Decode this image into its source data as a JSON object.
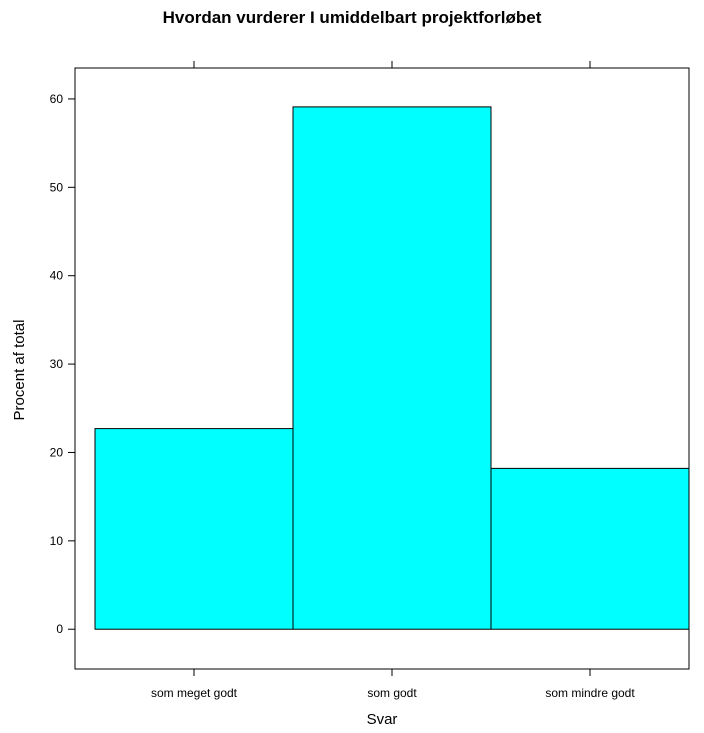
{
  "chart_data": {
    "type": "bar",
    "title": "Hvordan vurderer I umiddelbart projektforløbet",
    "xlabel": "Svar",
    "ylabel": "Procent af total",
    "categories": [
      "som meget godt",
      "som godt",
      "som mindre godt"
    ],
    "values": [
      22.7,
      59.1,
      18.2
    ],
    "ylim": [
      -4.5,
      63.5
    ],
    "yticks": [
      0,
      10,
      20,
      30,
      40,
      50,
      60
    ],
    "bar_color": "#00ffff",
    "bar_edge_color": "#000000",
    "grid": false,
    "legend": "none"
  }
}
